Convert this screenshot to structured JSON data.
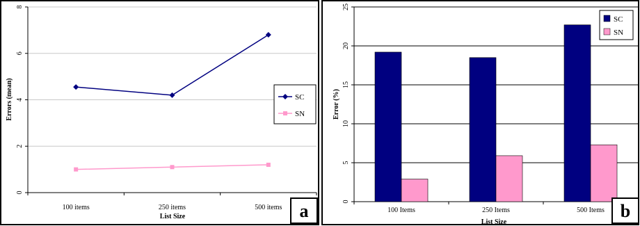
{
  "chart_data": [
    {
      "panel_label": "a",
      "type": "line",
      "categories": [
        "100 items",
        "250 items",
        "500 items"
      ],
      "xlabel": "List Size",
      "ylabel": "Errors (mean)",
      "ylim": [
        0,
        8
      ],
      "yticks": [
        0,
        2,
        4,
        6,
        8
      ],
      "grid": true,
      "legend_position": "right",
      "series": [
        {
          "name": "SC",
          "values": [
            4.55,
            4.2,
            6.8
          ],
          "color": "#000080",
          "marker": "diamond"
        },
        {
          "name": "SN",
          "values": [
            1.0,
            1.1,
            1.2
          ],
          "color": "#ff99cc",
          "marker": "square"
        }
      ]
    },
    {
      "panel_label": "b",
      "type": "bar",
      "categories": [
        "100 Items",
        "250 Items",
        "500 Items"
      ],
      "xlabel": "List Size",
      "ylabel": "Error (%)",
      "ylim": [
        0,
        25
      ],
      "yticks": [
        0,
        5,
        10,
        15,
        20,
        25
      ],
      "grid": true,
      "legend_position": "top-right",
      "series": [
        {
          "name": "SC",
          "values": [
            19.2,
            18.5,
            22.7
          ],
          "color": "#000080"
        },
        {
          "name": "SN",
          "values": [
            2.9,
            5.9,
            7.3
          ],
          "color": "#ff99cc"
        }
      ]
    }
  ]
}
